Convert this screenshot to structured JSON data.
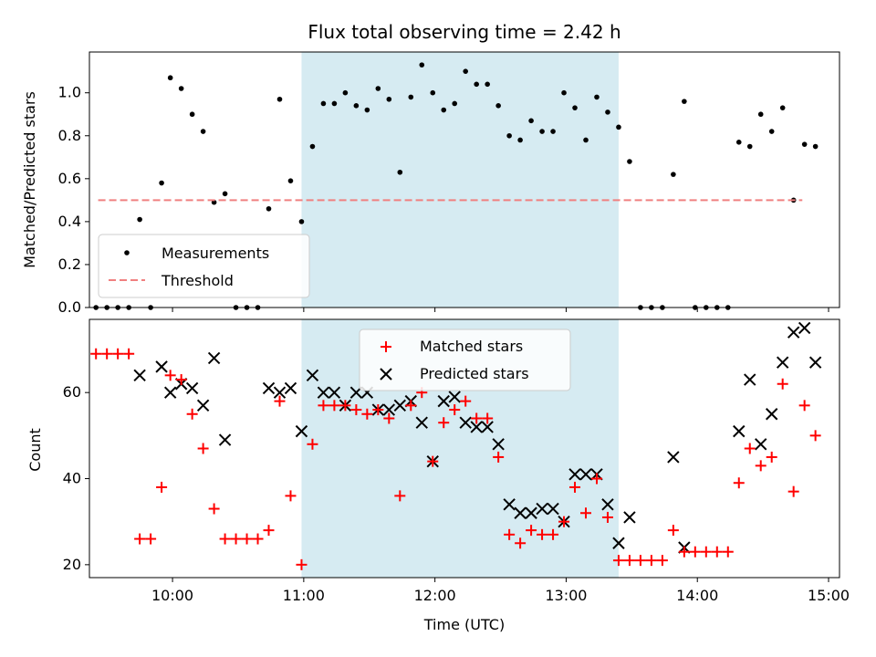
{
  "colors": {
    "measurement": "#000000",
    "threshold": "#f08080",
    "matched": "#ff0000",
    "predicted": "#000000",
    "observing_band": "#add8e6"
  },
  "chart_data": [
    {
      "type": "scatter",
      "title": "Flux total observing time = 2.42 h",
      "xlabel": "",
      "ylabel": "Matched/Predicted stars",
      "xlim": [
        "09:22",
        "15:05"
      ],
      "ylim": [
        0,
        1.19
      ],
      "yticks": [
        "0.0",
        "0.2",
        "0.4",
        "0.6",
        "0.8",
        "1.0"
      ],
      "shaded_region": {
        "start": "10:59",
        "end": "13:24"
      },
      "legend": {
        "placement": "lower-left",
        "entries": [
          "Measurements",
          "Threshold"
        ]
      },
      "threshold": {
        "name": "Threshold",
        "value": 0.5,
        "x_start": "09:26",
        "x_end": "14:48"
      },
      "series": [
        {
          "name": "Measurements",
          "marker": "dot",
          "points": [
            [
              "09:25",
              0
            ],
            [
              "09:30",
              0
            ],
            [
              "09:35",
              0
            ],
            [
              "09:40",
              0
            ],
            [
              "09:45",
              0.41
            ],
            [
              "09:50",
              0
            ],
            [
              "09:55",
              0.58
            ],
            [
              "09:59",
              1.07
            ],
            [
              "10:04",
              1.02
            ],
            [
              "10:09",
              0.9
            ],
            [
              "10:14",
              0.82
            ],
            [
              "10:19",
              0.49
            ],
            [
              "10:24",
              0.53
            ],
            [
              "10:29",
              0
            ],
            [
              "10:34",
              0
            ],
            [
              "10:39",
              0
            ],
            [
              "10:44",
              0.46
            ],
            [
              "10:49",
              0.97
            ],
            [
              "10:54",
              0.59
            ],
            [
              "10:59",
              0.4
            ],
            [
              "11:04",
              0.75
            ],
            [
              "11:09",
              0.95
            ],
            [
              "11:14",
              0.95
            ],
            [
              "11:19",
              1.0
            ],
            [
              "11:24",
              0.94
            ],
            [
              "11:29",
              0.92
            ],
            [
              "11:34",
              1.02
            ],
            [
              "11:39",
              0.97
            ],
            [
              "11:44",
              0.63
            ],
            [
              "11:49",
              0.98
            ],
            [
              "11:54",
              1.13
            ],
            [
              "11:59",
              1.0
            ],
            [
              "12:04",
              0.92
            ],
            [
              "12:09",
              0.95
            ],
            [
              "12:14",
              1.1
            ],
            [
              "12:19",
              1.04
            ],
            [
              "12:24",
              1.04
            ],
            [
              "12:29",
              0.94
            ],
            [
              "12:34",
              0.8
            ],
            [
              "12:39",
              0.78
            ],
            [
              "12:44",
              0.87
            ],
            [
              "12:49",
              0.82
            ],
            [
              "12:54",
              0.82
            ],
            [
              "12:59",
              1.0
            ],
            [
              "13:04",
              0.93
            ],
            [
              "13:09",
              0.78
            ],
            [
              "13:14",
              0.98
            ],
            [
              "13:19",
              0.91
            ],
            [
              "13:24",
              0.84
            ],
            [
              "13:29",
              0.68
            ],
            [
              "13:34",
              0
            ],
            [
              "13:39",
              0
            ],
            [
              "13:44",
              0
            ],
            [
              "13:49",
              0.62
            ],
            [
              "13:54",
              0.96
            ],
            [
              "13:59",
              0
            ],
            [
              "14:04",
              0
            ],
            [
              "14:09",
              0
            ],
            [
              "14:14",
              0
            ],
            [
              "14:19",
              0.77
            ],
            [
              "14:24",
              0.75
            ],
            [
              "14:29",
              0.9
            ],
            [
              "14:34",
              0.82
            ],
            [
              "14:39",
              0.93
            ],
            [
              "14:44",
              0.5
            ],
            [
              "14:49",
              0.76
            ],
            [
              "14:54",
              0.75
            ]
          ]
        }
      ]
    },
    {
      "type": "scatter",
      "title": "",
      "xlabel": "Time (UTC)",
      "ylabel": "Count",
      "xlim": [
        "09:22",
        "15:05"
      ],
      "ylim": [
        17,
        77
      ],
      "yticks": [
        "20",
        "40",
        "60"
      ],
      "xticks": [
        "10:00",
        "11:00",
        "12:00",
        "13:00",
        "14:00",
        "15:00"
      ],
      "shaded_region": {
        "start": "10:59",
        "end": "13:24"
      },
      "legend": {
        "placement": "upper-center",
        "entries": [
          "Matched stars",
          "Predicted stars"
        ]
      },
      "series": [
        {
          "name": "Matched stars",
          "marker": "plus",
          "points": [
            [
              "09:25",
              69
            ],
            [
              "09:30",
              69
            ],
            [
              "09:35",
              69
            ],
            [
              "09:40",
              69
            ],
            [
              "09:45",
              26
            ],
            [
              "09:50",
              26
            ],
            [
              "09:55",
              38
            ],
            [
              "09:59",
              64
            ],
            [
              "10:04",
              63
            ],
            [
              "10:09",
              55
            ],
            [
              "10:14",
              47
            ],
            [
              "10:19",
              33
            ],
            [
              "10:24",
              26
            ],
            [
              "10:29",
              26
            ],
            [
              "10:34",
              26
            ],
            [
              "10:39",
              26
            ],
            [
              "10:44",
              28
            ],
            [
              "10:49",
              58
            ],
            [
              "10:54",
              36
            ],
            [
              "10:59",
              20
            ],
            [
              "11:04",
              48
            ],
            [
              "11:09",
              57
            ],
            [
              "11:14",
              57
            ],
            [
              "11:19",
              57
            ],
            [
              "11:24",
              56
            ],
            [
              "11:29",
              55
            ],
            [
              "11:34",
              56
            ],
            [
              "11:39",
              54
            ],
            [
              "11:44",
              36
            ],
            [
              "11:49",
              57
            ],
            [
              "11:54",
              60
            ],
            [
              "11:59",
              44
            ],
            [
              "12:04",
              53
            ],
            [
              "12:09",
              56
            ],
            [
              "12:14",
              58
            ],
            [
              "12:19",
              54
            ],
            [
              "12:24",
              54
            ],
            [
              "12:29",
              45
            ],
            [
              "12:34",
              27
            ],
            [
              "12:39",
              25
            ],
            [
              "12:44",
              28
            ],
            [
              "12:49",
              27
            ],
            [
              "12:54",
              27
            ],
            [
              "12:59",
              30
            ],
            [
              "13:04",
              38
            ],
            [
              "13:09",
              32
            ],
            [
              "13:14",
              40
            ],
            [
              "13:19",
              31
            ],
            [
              "13:24",
              21
            ],
            [
              "13:29",
              21
            ],
            [
              "13:34",
              21
            ],
            [
              "13:39",
              21
            ],
            [
              "13:44",
              21
            ],
            [
              "13:49",
              28
            ],
            [
              "13:54",
              23
            ],
            [
              "13:59",
              23
            ],
            [
              "14:04",
              23
            ],
            [
              "14:09",
              23
            ],
            [
              "14:14",
              23
            ],
            [
              "14:19",
              39
            ],
            [
              "14:24",
              47
            ],
            [
              "14:29",
              43
            ],
            [
              "14:34",
              45
            ],
            [
              "14:39",
              62
            ],
            [
              "14:44",
              37
            ],
            [
              "14:49",
              57
            ],
            [
              "14:54",
              50
            ]
          ]
        },
        {
          "name": "Predicted stars",
          "marker": "x",
          "points": [
            [
              "09:45",
              64
            ],
            [
              "09:55",
              66
            ],
            [
              "09:59",
              60
            ],
            [
              "10:04",
              62
            ],
            [
              "10:09",
              61
            ],
            [
              "10:14",
              57
            ],
            [
              "10:19",
              68
            ],
            [
              "10:24",
              49
            ],
            [
              "10:44",
              61
            ],
            [
              "10:49",
              60
            ],
            [
              "10:54",
              61
            ],
            [
              "10:59",
              51
            ],
            [
              "11:04",
              64
            ],
            [
              "11:09",
              60
            ],
            [
              "11:14",
              60
            ],
            [
              "11:19",
              57
            ],
            [
              "11:24",
              60
            ],
            [
              "11:29",
              60
            ],
            [
              "11:34",
              56
            ],
            [
              "11:39",
              56
            ],
            [
              "11:44",
              57
            ],
            [
              "11:49",
              58
            ],
            [
              "11:54",
              53
            ],
            [
              "11:59",
              44
            ],
            [
              "12:04",
              58
            ],
            [
              "12:09",
              59
            ],
            [
              "12:14",
              53
            ],
            [
              "12:19",
              52
            ],
            [
              "12:24",
              52
            ],
            [
              "12:29",
              48
            ],
            [
              "12:34",
              34
            ],
            [
              "12:39",
              32
            ],
            [
              "12:44",
              32
            ],
            [
              "12:49",
              33
            ],
            [
              "12:54",
              33
            ],
            [
              "12:59",
              30
            ],
            [
              "13:04",
              41
            ],
            [
              "13:09",
              41
            ],
            [
              "13:14",
              41
            ],
            [
              "13:19",
              34
            ],
            [
              "13:24",
              25
            ],
            [
              "13:29",
              31
            ],
            [
              "13:49",
              45
            ],
            [
              "13:54",
              24
            ],
            [
              "14:19",
              51
            ],
            [
              "14:24",
              63
            ],
            [
              "14:29",
              48
            ],
            [
              "14:34",
              55
            ],
            [
              "14:39",
              67
            ],
            [
              "14:44",
              74
            ],
            [
              "14:49",
              75
            ],
            [
              "14:54",
              67
            ]
          ]
        }
      ]
    }
  ]
}
